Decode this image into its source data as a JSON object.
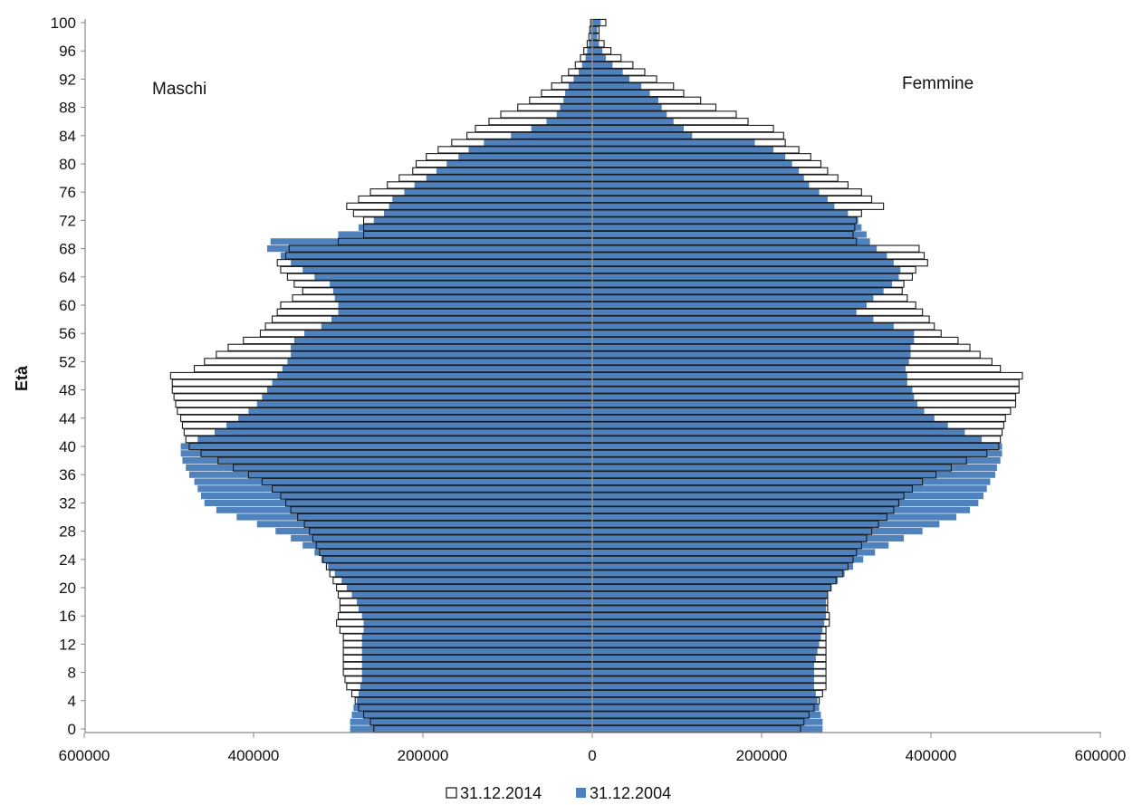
{
  "chart_data": {
    "type": "bar",
    "orientation": "horizontal-population-pyramid",
    "ylabel": "Età",
    "left_label": "Maschi",
    "right_label": "Femmine",
    "xlim": [
      -600000,
      600000
    ],
    "x_tick_labels": [
      "600000",
      "400000",
      "200000",
      "0",
      "200000",
      "400000",
      "600000"
    ],
    "x_tick_values": [
      -600000,
      -400000,
      -200000,
      0,
      200000,
      400000,
      600000
    ],
    "y_tick_labels": [
      "0",
      "4",
      "8",
      "12",
      "16",
      "20",
      "24",
      "28",
      "32",
      "36",
      "40",
      "44",
      "48",
      "52",
      "56",
      "60",
      "64",
      "68",
      "72",
      "76",
      "80",
      "84",
      "88",
      "92",
      "96",
      "100"
    ],
    "categories_age": [
      0,
      1,
      2,
      3,
      4,
      5,
      6,
      7,
      8,
      9,
      10,
      11,
      12,
      13,
      14,
      15,
      16,
      17,
      18,
      19,
      20,
      21,
      22,
      23,
      24,
      25,
      26,
      27,
      28,
      29,
      30,
      31,
      32,
      33,
      34,
      35,
      36,
      37,
      38,
      39,
      40,
      41,
      42,
      43,
      44,
      45,
      46,
      47,
      48,
      49,
      50,
      51,
      52,
      53,
      54,
      55,
      56,
      57,
      58,
      59,
      60,
      61,
      62,
      63,
      64,
      65,
      66,
      67,
      68,
      69,
      70,
      71,
      72,
      73,
      74,
      75,
      76,
      77,
      78,
      79,
      80,
      81,
      82,
      83,
      84,
      85,
      86,
      87,
      88,
      89,
      90,
      91,
      92,
      93,
      94,
      95,
      96,
      97,
      98,
      99,
      100
    ],
    "legend_position": "bottom-center",
    "series": [
      {
        "name": "31.12.2014",
        "color": "#ffffff",
        "males": [
          258000,
          262000,
          270000,
          276000,
          280000,
          284000,
          290000,
          292000,
          294000,
          294000,
          294000,
          294000,
          294000,
          294000,
          298000,
          302000,
          300000,
          298000,
          298000,
          300000,
          302000,
          306000,
          310000,
          314000,
          318000,
          322000,
          326000,
          330000,
          334000,
          340000,
          348000,
          356000,
          362000,
          368000,
          378000,
          390000,
          406000,
          424000,
          442000,
          462000,
          476000,
          480000,
          482000,
          484000,
          486000,
          490000,
          492000,
          494000,
          496000,
          496000,
          498000,
          470000,
          458000,
          444000,
          430000,
          412000,
          392000,
          386000,
          378000,
          372000,
          368000,
          354000,
          342000,
          352000,
          360000,
          368000,
          372000,
          362000,
          358000,
          300000,
          270000,
          270000,
          270000,
          282000,
          290000,
          276000,
          262000,
          242000,
          228000,
          212000,
          208000,
          196000,
          182000,
          166000,
          148000,
          138000,
          122000,
          108000,
          88000,
          74000,
          60000,
          48000,
          36000,
          28000,
          20000,
          14000,
          10000,
          6000,
          4000,
          3000,
          2000
        ],
        "females": [
          246000,
          250000,
          256000,
          262000,
          268000,
          272000,
          276000,
          276000,
          276000,
          276000,
          276000,
          276000,
          276000,
          276000,
          276000,
          280000,
          280000,
          278000,
          278000,
          278000,
          282000,
          288000,
          296000,
          302000,
          308000,
          312000,
          318000,
          324000,
          330000,
          338000,
          348000,
          356000,
          362000,
          368000,
          378000,
          390000,
          406000,
          424000,
          442000,
          466000,
          480000,
          482000,
          484000,
          486000,
          488000,
          494000,
          500000,
          500000,
          504000,
          504000,
          508000,
          482000,
          472000,
          458000,
          446000,
          432000,
          412000,
          404000,
          398000,
          390000,
          382000,
          372000,
          366000,
          368000,
          378000,
          382000,
          396000,
          392000,
          386000,
          312000,
          308000,
          310000,
          312000,
          318000,
          344000,
          330000,
          318000,
          302000,
          290000,
          278000,
          270000,
          258000,
          244000,
          228000,
          226000,
          214000,
          184000,
          170000,
          146000,
          128000,
          108000,
          96000,
          76000,
          62000,
          48000,
          34000,
          22000,
          14000,
          8000,
          8000,
          16000
        ]
      },
      {
        "name": "31.12.2004",
        "color": "#4f81bd",
        "males": [
          286000,
          286000,
          284000,
          282000,
          278000,
          276000,
          274000,
          272000,
          272000,
          272000,
          272000,
          272000,
          272000,
          272000,
          270000,
          270000,
          272000,
          276000,
          278000,
          284000,
          290000,
          296000,
          304000,
          312000,
          320000,
          328000,
          342000,
          356000,
          374000,
          396000,
          420000,
          444000,
          458000,
          462000,
          466000,
          470000,
          476000,
          480000,
          484000,
          486000,
          486000,
          466000,
          446000,
          432000,
          418000,
          406000,
          396000,
          390000,
          384000,
          378000,
          372000,
          366000,
          360000,
          356000,
          356000,
          352000,
          340000,
          320000,
          308000,
          300000,
          300000,
          304000,
          306000,
          310000,
          328000,
          342000,
          356000,
          368000,
          384000,
          380000,
          300000,
          276000,
          258000,
          246000,
          240000,
          236000,
          222000,
          210000,
          196000,
          184000,
          172000,
          158000,
          146000,
          128000,
          96000,
          72000,
          54000,
          42000,
          38000,
          34000,
          32000,
          28000,
          22000,
          16000,
          12000,
          8000,
          6000,
          4000,
          2000,
          2000,
          1000
        ],
        "females": [
          272000,
          272000,
          270000,
          268000,
          266000,
          264000,
          262000,
          262000,
          262000,
          262000,
          264000,
          266000,
          268000,
          270000,
          272000,
          274000,
          276000,
          276000,
          276000,
          278000,
          282000,
          290000,
          298000,
          308000,
          320000,
          334000,
          350000,
          368000,
          390000,
          410000,
          430000,
          446000,
          456000,
          462000,
          466000,
          470000,
          476000,
          478000,
          482000,
          484000,
          484000,
          460000,
          440000,
          420000,
          404000,
          392000,
          384000,
          380000,
          378000,
          372000,
          372000,
          370000,
          374000,
          376000,
          376000,
          380000,
          380000,
          356000,
          332000,
          312000,
          324000,
          332000,
          344000,
          354000,
          362000,
          364000,
          356000,
          348000,
          336000,
          328000,
          324000,
          318000,
          314000,
          302000,
          286000,
          278000,
          268000,
          256000,
          250000,
          244000,
          236000,
          228000,
          214000,
          192000,
          118000,
          108000,
          96000,
          88000,
          82000,
          78000,
          68000,
          58000,
          44000,
          36000,
          24000,
          16000,
          12000,
          8000,
          6000,
          6000,
          10000
        ]
      }
    ]
  }
}
